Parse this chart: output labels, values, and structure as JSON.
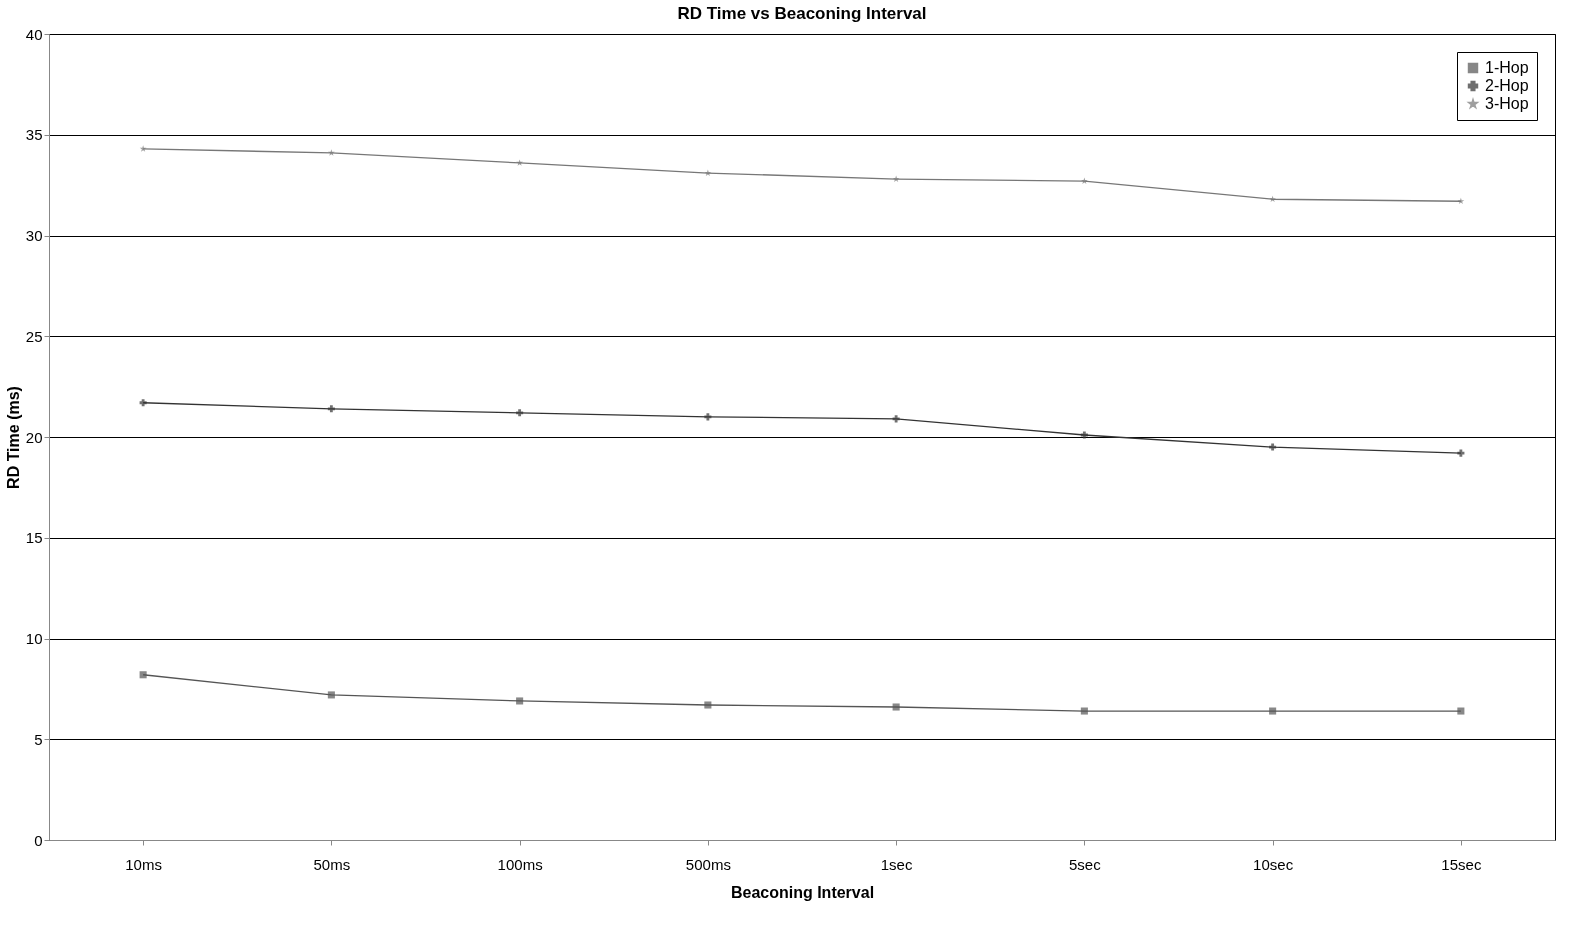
{
  "chart_data": {
    "type": "line",
    "title": "RD Time vs Beaconing Interval",
    "xlabel": "Beaconing Interval",
    "ylabel": "RD Time (ms)",
    "categories": [
      "10ms",
      "50ms",
      "100ms",
      "500ms",
      "1sec",
      "5sec",
      "10sec",
      "15sec"
    ],
    "series": [
      {
        "name": "1-Hop",
        "color": "#555555",
        "marker": "square",
        "values": [
          8.2,
          7.2,
          6.9,
          6.7,
          6.6,
          6.4,
          6.4,
          6.4
        ]
      },
      {
        "name": "2-Hop",
        "color": "#333333",
        "marker": "cross",
        "values": [
          21.7,
          21.4,
          21.2,
          21.0,
          20.9,
          20.1,
          19.5,
          19.2
        ]
      },
      {
        "name": "3-Hop",
        "color": "#777777",
        "marker": "star",
        "values": [
          34.3,
          34.1,
          33.6,
          33.1,
          32.8,
          32.7,
          31.8,
          31.7
        ]
      }
    ],
    "ylim": [
      0,
      40
    ],
    "yticks": [
      0,
      5,
      10,
      15,
      20,
      25,
      30,
      35,
      40
    ],
    "grid": "y",
    "legend": "top right",
    "line_style": "solid"
  }
}
